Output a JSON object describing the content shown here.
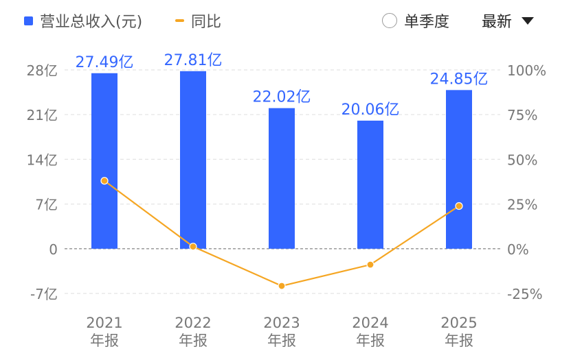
{
  "legend": {
    "bar_label": "营业总收入(元)",
    "line_label": "同比",
    "bar_color": "#3366ff",
    "line_color": "#f5a623"
  },
  "controls": {
    "quarter_toggle_label": "单季度",
    "quarter_toggle_checked": false,
    "sort_dropdown_label": "最新"
  },
  "chart_data": {
    "type": "bar+line",
    "categories": [
      "2021\n年报",
      "2022\n年报",
      "2023\n年报",
      "2024\n年报",
      "2025\n年报"
    ],
    "series": [
      {
        "name": "营业总收入(元)",
        "type": "bar",
        "axis": "left",
        "values": [
          27.49,
          27.81,
          22.02,
          20.06,
          24.85
        ],
        "data_labels": [
          "27.49亿",
          "27.81亿",
          "22.02亿",
          "20.06亿",
          "24.85亿"
        ]
      },
      {
        "name": "同比",
        "type": "line",
        "axis": "right",
        "values": [
          38,
          1.2,
          -20.8,
          -8.9,
          23.9
        ]
      }
    ],
    "y_left": {
      "range": [
        -7,
        28
      ],
      "ticks": [
        28,
        21,
        14,
        7,
        0,
        -7
      ],
      "tick_labels": [
        "28亿",
        "21亿",
        "14亿",
        "7亿",
        "0",
        "-7亿"
      ]
    },
    "y_right": {
      "range": [
        -25,
        100
      ],
      "ticks": [
        100,
        75,
        50,
        25,
        0,
        -25
      ],
      "tick_labels": [
        "100%",
        "75%",
        "50%",
        "25%",
        "0%",
        "-25%"
      ]
    },
    "grid": true,
    "legend_position": "top-left"
  }
}
